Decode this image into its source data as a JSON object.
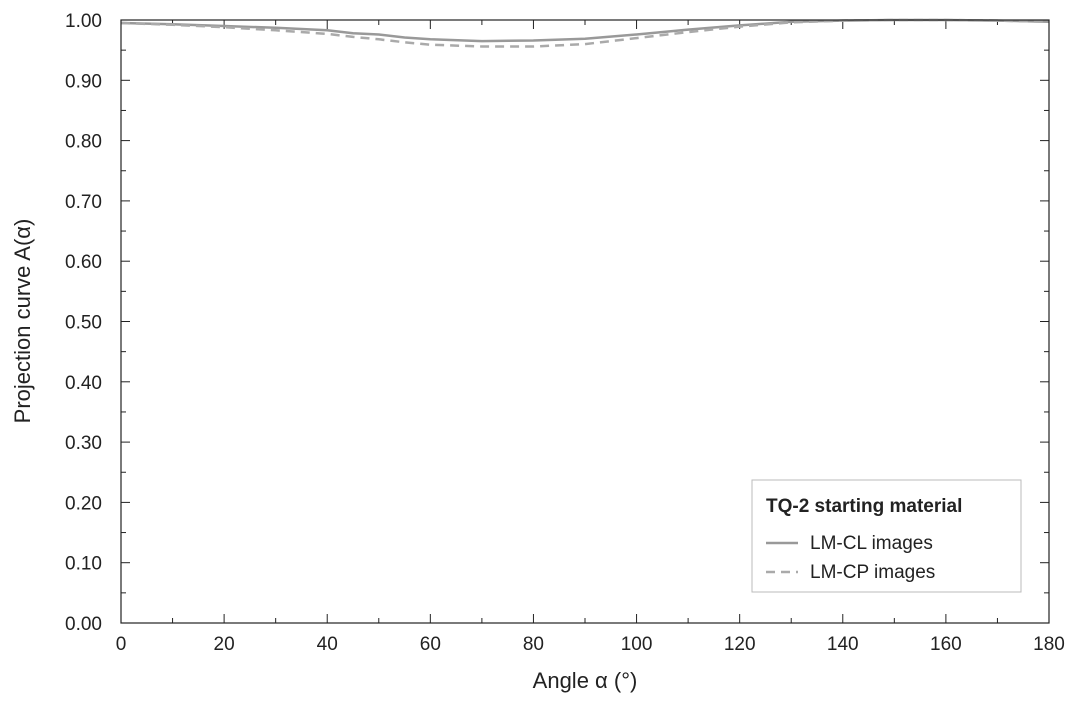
{
  "chart_data": {
    "type": "line",
    "title": "",
    "xlabel": "Angle α (°)",
    "ylabel": "Projection curve A(α)",
    "xlim": [
      0,
      180
    ],
    "ylim": [
      0,
      1
    ],
    "grid": false,
    "x_ticks": [
      0,
      20,
      40,
      60,
      80,
      100,
      120,
      140,
      160,
      180
    ],
    "x_tick_labels": [
      "0",
      "20",
      "40",
      "60",
      "80",
      "100",
      "120",
      "140",
      "160",
      "180"
    ],
    "y_ticks": [
      0,
      0.1,
      0.2,
      0.3,
      0.4,
      0.5,
      0.6,
      0.7,
      0.8,
      0.9,
      1.0
    ],
    "y_tick_labels": [
      "0.00",
      "0.10",
      "0.20",
      "0.30",
      "0.40",
      "0.50",
      "0.60",
      "0.70",
      "0.80",
      "0.90",
      "1.00"
    ],
    "legend": {
      "title": "TQ-2 starting material",
      "position": "bottom-right"
    },
    "series": [
      {
        "name": "LM-CL images",
        "style": "solid",
        "color": "#999999",
        "x": [
          0,
          10,
          20,
          30,
          40,
          45,
          50,
          55,
          60,
          70,
          80,
          90,
          100,
          110,
          120,
          130,
          140,
          150,
          160,
          170,
          180
        ],
        "y": [
          0.995,
          0.993,
          0.99,
          0.987,
          0.983,
          0.978,
          0.976,
          0.971,
          0.968,
          0.965,
          0.966,
          0.969,
          0.976,
          0.984,
          0.991,
          0.997,
          0.999,
          1.0,
          1.0,
          0.999,
          0.997
        ]
      },
      {
        "name": "LM-CP images",
        "style": "dashed",
        "color": "#aaaaaa",
        "x": [
          0,
          10,
          20,
          30,
          40,
          45,
          50,
          55,
          60,
          70,
          80,
          90,
          100,
          110,
          120,
          130,
          140,
          150,
          160,
          170,
          180
        ],
        "y": [
          0.995,
          0.992,
          0.988,
          0.983,
          0.977,
          0.972,
          0.968,
          0.963,
          0.959,
          0.956,
          0.956,
          0.96,
          0.97,
          0.98,
          0.989,
          0.996,
          0.999,
          1.0,
          1.0,
          0.999,
          0.997
        ]
      }
    ]
  }
}
